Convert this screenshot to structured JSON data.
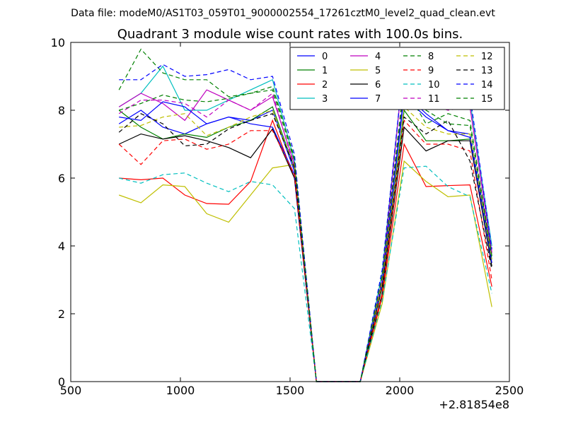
{
  "header": {
    "data_file_line": "Data file: modeM0/AS1T03_059T01_9000002554_17261cztM0_level2_quad_clean.evt"
  },
  "chart_data": {
    "type": "line",
    "title": "Quadrant 3 module wise count rates with 100.0s bins.",
    "xlabel": "",
    "ylabel": "",
    "x_offset_label": "+2.81854e8",
    "xlim": [
      500,
      2500
    ],
    "ylim": [
      0,
      10
    ],
    "grid": false,
    "legend_placement": "top-right",
    "xticks": [
      500,
      1000,
      1500,
      2000,
      2500
    ],
    "xtick_labels": [
      "500",
      "1000",
      "1500",
      "2000",
      "2500"
    ],
    "yticks": [
      0,
      2,
      4,
      6,
      8,
      10
    ],
    "ytick_labels": [
      "0",
      "2",
      "4",
      "6",
      "8",
      "10"
    ],
    "x": [
      720,
      820,
      920,
      1020,
      1120,
      1220,
      1320,
      1420,
      1520,
      1620,
      1720,
      1820,
      1920,
      2020,
      2120,
      2220,
      2320,
      2420
    ],
    "series": [
      {
        "name": "0",
        "color": "#0000ff",
        "dash": "solid",
        "values": [
          7.6,
          8.0,
          7.5,
          7.3,
          7.6,
          7.8,
          7.7,
          8.0,
          6.2,
          0,
          0,
          0,
          3.0,
          8.5,
          7.9,
          7.4,
          7.3,
          3.7
        ]
      },
      {
        "name": "1",
        "color": "#008000",
        "dash": "solid",
        "values": [
          8.0,
          7.5,
          7.15,
          7.3,
          7.2,
          7.5,
          7.7,
          8.1,
          6.3,
          0,
          0,
          0,
          2.8,
          8.0,
          7.1,
          7.1,
          7.15,
          3.6
        ]
      },
      {
        "name": "2",
        "color": "#ff0000",
        "dash": "solid",
        "values": [
          6.0,
          5.95,
          6.0,
          5.5,
          5.25,
          5.23,
          5.9,
          7.7,
          6.0,
          0,
          0,
          0,
          2.5,
          7.0,
          5.75,
          5.78,
          5.8,
          2.8
        ]
      },
      {
        "name": "3",
        "color": "#00bfbf",
        "dash": "solid",
        "values": [
          8.1,
          8.5,
          9.3,
          8.0,
          8.0,
          8.3,
          8.6,
          8.9,
          6.5,
          0,
          0,
          0,
          3.2,
          9.5,
          8.9,
          8.4,
          8.3,
          4.0
        ]
      },
      {
        "name": "4",
        "color": "#bf00bf",
        "dash": "solid",
        "values": [
          8.1,
          8.5,
          8.2,
          7.7,
          8.6,
          8.3,
          8.0,
          8.4,
          6.4,
          0,
          0,
          0,
          3.0,
          9.5,
          8.5,
          8.2,
          8.1,
          3.8
        ]
      },
      {
        "name": "5",
        "color": "#bfbf00",
        "dash": "solid",
        "values": [
          5.5,
          5.27,
          5.8,
          5.75,
          4.95,
          4.7,
          5.5,
          6.3,
          6.4,
          0,
          0,
          0,
          2.3,
          6.5,
          5.9,
          5.45,
          5.5,
          2.2
        ]
      },
      {
        "name": "6",
        "color": "#000000",
        "dash": "solid",
        "values": [
          7.0,
          7.3,
          7.15,
          7.25,
          7.1,
          6.9,
          6.6,
          7.45,
          6.0,
          0,
          0,
          0,
          2.6,
          7.5,
          6.8,
          7.1,
          7.1,
          3.4
        ]
      },
      {
        "name": "7",
        "color": "#0000ff",
        "dash": "solid",
        "values": [
          7.8,
          7.7,
          8.25,
          8.1,
          7.6,
          7.8,
          7.6,
          7.5,
          6.1,
          0,
          0,
          0,
          2.9,
          8.4,
          7.8,
          7.4,
          7.2,
          3.5
        ]
      },
      {
        "name": "8",
        "color": "#008000",
        "dash": "dashed",
        "values": [
          8.6,
          9.8,
          9.1,
          8.9,
          8.9,
          8.4,
          8.5,
          8.7,
          6.6,
          0,
          0,
          0,
          3.1,
          8.7,
          7.6,
          7.9,
          7.7,
          3.7
        ]
      },
      {
        "name": "9",
        "color": "#ff0000",
        "dash": "dashed",
        "values": [
          7.0,
          6.4,
          7.1,
          7.15,
          6.85,
          7.0,
          7.4,
          7.4,
          6.1,
          0,
          0,
          0,
          2.6,
          7.7,
          7.0,
          7.0,
          6.8,
          3.0
        ]
      },
      {
        "name": "10",
        "color": "#00bfbf",
        "dash": "dashed",
        "values": [
          6.0,
          5.85,
          6.1,
          6.15,
          5.85,
          5.6,
          5.9,
          5.8,
          5.1,
          0,
          0,
          0,
          2.4,
          6.3,
          6.35,
          5.75,
          5.45,
          2.6
        ]
      },
      {
        "name": "11",
        "color": "#bf00bf",
        "dash": "dashed",
        "values": [
          7.9,
          8.3,
          8.3,
          8.2,
          7.8,
          8.3,
          8.0,
          8.5,
          6.3,
          0,
          0,
          0,
          3.0,
          8.9,
          8.2,
          8.0,
          8.1,
          3.8
        ]
      },
      {
        "name": "12",
        "color": "#bfbf00",
        "dash": "dashed",
        "values": [
          7.5,
          7.55,
          7.8,
          7.9,
          7.25,
          7.5,
          7.8,
          8.0,
          6.3,
          0,
          0,
          0,
          2.9,
          8.1,
          7.5,
          7.3,
          7.3,
          3.6
        ]
      },
      {
        "name": "13",
        "color": "#000000",
        "dash": "dashed",
        "values": [
          7.35,
          7.9,
          7.6,
          6.95,
          7.0,
          7.45,
          7.7,
          7.9,
          6.3,
          0,
          0,
          0,
          2.8,
          7.8,
          7.3,
          7.7,
          6.5,
          3.3
        ]
      },
      {
        "name": "14",
        "color": "#0000ff",
        "dash": "dashed",
        "values": [
          8.9,
          8.9,
          9.35,
          9.0,
          9.05,
          9.2,
          8.9,
          9.0,
          6.7,
          0,
          0,
          0,
          3.3,
          9.45,
          9.3,
          8.5,
          8.45,
          3.9
        ]
      },
      {
        "name": "15",
        "color": "#008000",
        "dash": "dashed",
        "values": [
          8.0,
          8.2,
          8.45,
          8.3,
          8.25,
          8.35,
          8.5,
          8.6,
          6.5,
          0,
          0,
          0,
          3.1,
          8.8,
          8.0,
          7.6,
          7.55,
          3.7
        ]
      }
    ]
  }
}
